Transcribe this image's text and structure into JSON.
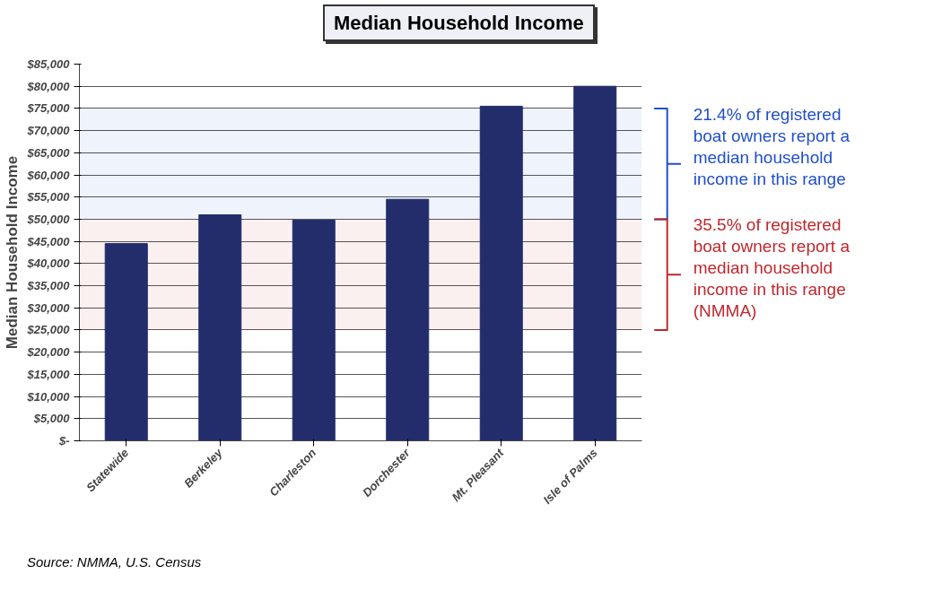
{
  "chart_data": {
    "type": "bar",
    "title": "Median Household Income",
    "ylabel": "Median Household Income",
    "categories": [
      "Statewide",
      "Berkeley",
      "Charleston",
      "Dorchester",
      "Mt. Pleasant",
      "Isle of Palms"
    ],
    "values": [
      44500,
      51000,
      49800,
      54500,
      75500,
      80000
    ],
    "color": "#232d6b",
    "ylim": [
      0,
      85000
    ],
    "yticks": [
      {
        "value": 0,
        "label": "$-"
      },
      {
        "value": 5000,
        "label": "$5,000"
      },
      {
        "value": 10000,
        "label": "$10,000"
      },
      {
        "value": 15000,
        "label": "$15,000"
      },
      {
        "value": 20000,
        "label": "$20,000"
      },
      {
        "value": 25000,
        "label": "$25,000"
      },
      {
        "value": 30000,
        "label": "$30,000"
      },
      {
        "value": 35000,
        "label": "$35,000"
      },
      {
        "value": 40000,
        "label": "$40,000"
      },
      {
        "value": 45000,
        "label": "$45,000"
      },
      {
        "value": 50000,
        "label": "$50,000"
      },
      {
        "value": 55000,
        "label": "$55,000"
      },
      {
        "value": 60000,
        "label": "$60,000"
      },
      {
        "value": 65000,
        "label": "$65,000"
      },
      {
        "value": 70000,
        "label": "$70,000"
      },
      {
        "value": 75000,
        "label": "$75,000"
      },
      {
        "value": 80000,
        "label": "$80,000"
      },
      {
        "value": 85000,
        "label": "$85,000"
      }
    ],
    "grid": "y",
    "bands": [
      {
        "axis": "y",
        "from": 50000,
        "to": 75000,
        "label": "21.4% of registered boat owners report a median household income in this range",
        "color": "#1f4fc8"
      },
      {
        "axis": "y",
        "from": 25000,
        "to": 50000,
        "label": "35.5% of registered boat owners report a median household income in this range (NMMA)",
        "color": "#c0272d"
      }
    ],
    "annotations": [
      "Source:  NMMA, U.S. Census"
    ]
  }
}
